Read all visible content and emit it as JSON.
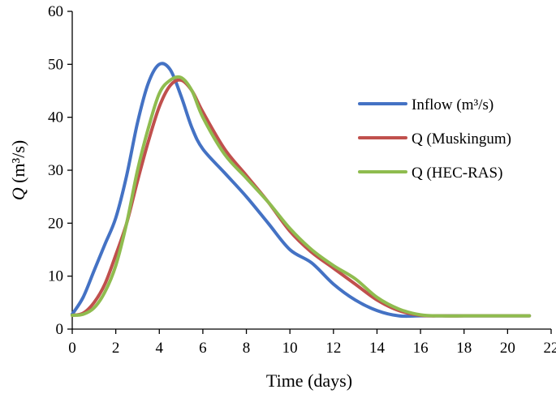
{
  "chart_data": {
    "type": "line",
    "xlabel": "Time (days)",
    "ylabel_italic": "Q",
    "ylabel_rest": " (m³/s)",
    "xlim": [
      0,
      22
    ],
    "ylim": [
      0,
      60
    ],
    "x_ticks": [
      0,
      2,
      4,
      6,
      8,
      10,
      12,
      14,
      16,
      18,
      20,
      22
    ],
    "y_ticks": [
      0,
      10,
      20,
      30,
      40,
      50,
      60
    ],
    "grid": false,
    "legend_position": "right",
    "series": [
      {
        "name": "Inflow (m³/s)",
        "color": "#4472C4",
        "x": [
          0,
          0.5,
          1,
          1.5,
          2,
          2.5,
          3,
          3.5,
          4,
          4.5,
          5,
          5.5,
          6,
          7,
          8,
          9,
          10,
          11,
          12,
          13,
          14,
          15,
          16,
          17,
          18,
          19,
          20,
          21
        ],
        "y": [
          2.8,
          6,
          11,
          16,
          21,
          29,
          39,
          46.5,
          50,
          49,
          44,
          38,
          34,
          29.5,
          25,
          20,
          15,
          12.5,
          8.5,
          5.5,
          3.5,
          2.5,
          2.5,
          2.5,
          2.5,
          2.5,
          2.5,
          2.5
        ]
      },
      {
        "name": "Q (Muskingum)",
        "color": "#C0504D",
        "x": [
          0,
          0.5,
          1,
          1.5,
          2,
          2.5,
          3,
          3.5,
          4,
          4.5,
          5,
          5.5,
          6,
          7,
          8,
          9,
          10,
          11,
          12,
          13,
          14,
          15,
          16,
          17,
          18,
          19,
          20,
          21
        ],
        "y": [
          2.6,
          3,
          5,
          8.5,
          14,
          20,
          28,
          35.5,
          42,
          46,
          47,
          45,
          41,
          34,
          29,
          24,
          18.5,
          14.5,
          11.5,
          8.5,
          5.5,
          3.5,
          2.6,
          2.5,
          2.5,
          2.5,
          2.5,
          2.5
        ]
      },
      {
        "name": "Q (HEC-RAS)",
        "color": "#8FBC4F",
        "x": [
          0,
          0.5,
          1,
          1.5,
          2,
          2.5,
          3,
          3.5,
          4,
          4.5,
          5,
          5.5,
          6,
          7,
          8,
          9,
          10,
          11,
          12,
          13,
          14,
          15,
          16,
          17,
          18,
          19,
          20,
          21
        ],
        "y": [
          2.6,
          2.8,
          4,
          7,
          12,
          20,
          30,
          38,
          44.5,
          47,
          47.5,
          45,
          40,
          33,
          28.5,
          24,
          19,
          15,
          12,
          9.5,
          6,
          3.8,
          2.7,
          2.5,
          2.5,
          2.5,
          2.5,
          2.5
        ]
      }
    ]
  }
}
